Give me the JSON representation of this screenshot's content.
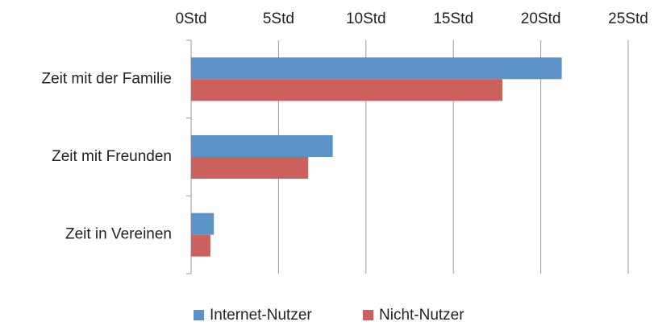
{
  "chart_data": {
    "type": "hbar",
    "categories": [
      "Zeit mit der Familie",
      "Zeit mit Freunden",
      "Zeit in Vereinen"
    ],
    "series": [
      {
        "name": "Internet-Nutzer",
        "color": "#5b93c9",
        "values": [
          21.2,
          8.1,
          1.3
        ]
      },
      {
        "name": "Nicht-Nutzer",
        "color": "#cc605c",
        "values": [
          17.8,
          6.7,
          1.1
        ]
      }
    ],
    "xlim": [
      0,
      25
    ],
    "xticks": [
      {
        "value": 0,
        "label": "0Std"
      },
      {
        "value": 5,
        "label": "5Std"
      },
      {
        "value": 10,
        "label": "10Std"
      },
      {
        "value": 15,
        "label": "15Std"
      },
      {
        "value": 20,
        "label": "20Std"
      },
      {
        "value": 25,
        "label": "25Std"
      }
    ],
    "grid": true,
    "legend": "bottom"
  }
}
